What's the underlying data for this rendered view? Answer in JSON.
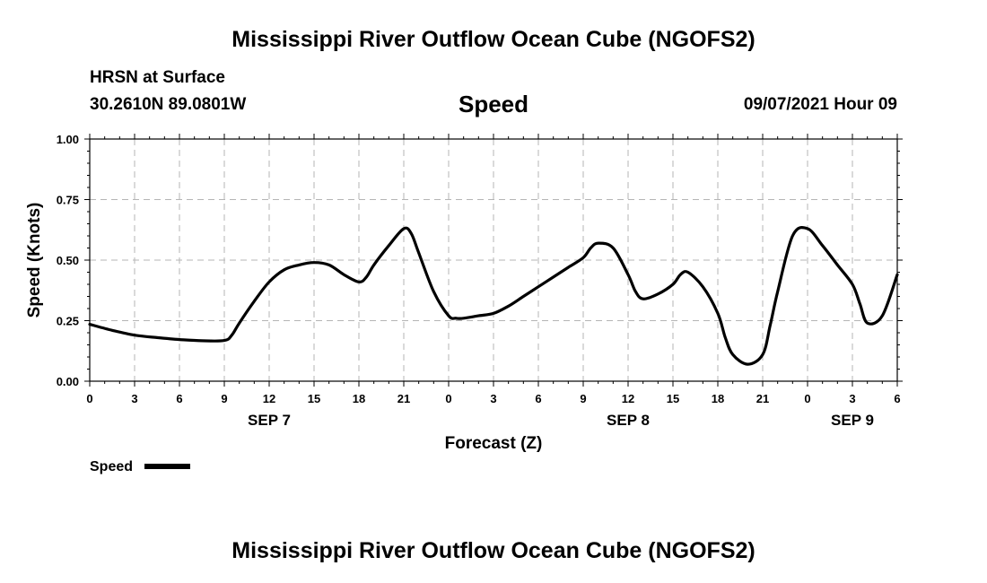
{
  "header": {
    "title": "Mississippi River Outflow Ocean Cube (NGOFS2)",
    "station": "HRSN at Surface",
    "coords": "30.2610N  89.0801W",
    "variable": "Speed",
    "datetime": "09/07/2021 Hour 09"
  },
  "footer": {
    "title": "Mississippi River Outflow Ocean Cube (NGOFS2)"
  },
  "chart_data": {
    "type": "line",
    "title": "Speed",
    "xlabel": "Forecast (Z)",
    "ylabel": "Speed (Knots)",
    "xlim": [
      0,
      54
    ],
    "ylim": [
      0,
      1
    ],
    "grid": true,
    "x_tick_labels": [
      "0",
      "3",
      "6",
      "9",
      "12",
      "15",
      "18",
      "21",
      "0",
      "3",
      "6",
      "9",
      "12",
      "15",
      "18",
      "21",
      "0",
      "3",
      "6"
    ],
    "y_tick_labels": [
      "0.00",
      "0.25",
      "0.50",
      "0.75",
      "1.00"
    ],
    "date_labels": [
      {
        "label": "SEP 7",
        "x": 12
      },
      {
        "label": "SEP 8",
        "x": 36
      },
      {
        "label": "SEP 9",
        "x": 51
      }
    ],
    "legend": {
      "label": "Speed",
      "placement": "bottom-left"
    },
    "series": [
      {
        "name": "Speed",
        "color": "#000000",
        "x": [
          0,
          1.5,
          3,
          4.5,
          6,
          7.5,
          9,
          9.5,
          10,
          11,
          12,
          13,
          14,
          15,
          16,
          17,
          18,
          18.5,
          19,
          20,
          21,
          21.5,
          22,
          23,
          24,
          24.5,
          25,
          26,
          27,
          28,
          29,
          30,
          31,
          32,
          33,
          33.5,
          34,
          35,
          36,
          36.5,
          37,
          38,
          39,
          39.5,
          40,
          41,
          42,
          42.5,
          43,
          44,
          45,
          45.5,
          46,
          47,
          48,
          49,
          50,
          51,
          51.5,
          52,
          53,
          54
        ],
        "y": [
          0.235,
          0.21,
          0.19,
          0.18,
          0.172,
          0.167,
          0.168,
          0.19,
          0.24,
          0.33,
          0.41,
          0.46,
          0.48,
          0.49,
          0.48,
          0.44,
          0.41,
          0.43,
          0.48,
          0.56,
          0.63,
          0.61,
          0.53,
          0.37,
          0.27,
          0.26,
          0.26,
          0.27,
          0.28,
          0.31,
          0.35,
          0.39,
          0.43,
          0.47,
          0.51,
          0.55,
          0.57,
          0.55,
          0.44,
          0.37,
          0.34,
          0.36,
          0.4,
          0.44,
          0.45,
          0.39,
          0.28,
          0.18,
          0.11,
          0.07,
          0.11,
          0.23,
          0.37,
          0.6,
          0.63,
          0.56,
          0.48,
          0.4,
          0.32,
          0.24,
          0.27,
          0.44
        ]
      }
    ]
  }
}
